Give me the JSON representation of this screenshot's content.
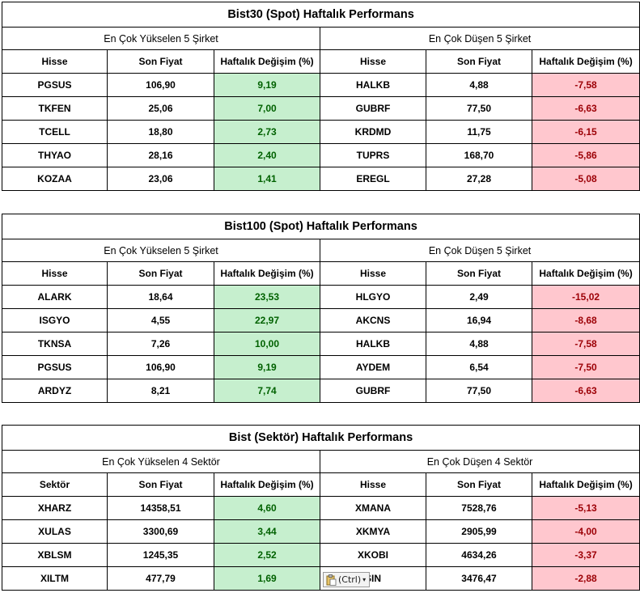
{
  "tables": [
    {
      "title": "Bist30 (Spot) Haftalık Performans",
      "left_group": "En Çok Yükselen 5 Şirket",
      "right_group": "En Çok Düşen 5 Şirket",
      "left_headers": [
        "Hisse",
        "Son Fiyat",
        "Haftalık Değişim (%)"
      ],
      "right_headers": [
        "Hisse",
        "Son Fiyat",
        "Haftalık Değişim (%)"
      ],
      "rows": [
        {
          "l_name": "PGSUS",
          "l_price": "106,90",
          "l_change": "9,19",
          "r_name": "HALKB",
          "r_price": "4,88",
          "r_change": "-7,58"
        },
        {
          "l_name": "TKFEN",
          "l_price": "25,06",
          "l_change": "7,00",
          "r_name": "GUBRF",
          "r_price": "77,50",
          "r_change": "-6,63"
        },
        {
          "l_name": "TCELL",
          "l_price": "18,80",
          "l_change": "2,73",
          "r_name": "KRDMD",
          "r_price": "11,75",
          "r_change": "-6,15"
        },
        {
          "l_name": "THYAO",
          "l_price": "28,16",
          "l_change": "2,40",
          "r_name": "TUPRS",
          "r_price": "168,70",
          "r_change": "-5,86"
        },
        {
          "l_name": "KOZAA",
          "l_price": "23,06",
          "l_change": "1,41",
          "r_name": "EREGL",
          "r_price": "27,28",
          "r_change": "-5,08"
        }
      ]
    },
    {
      "title": "Bist100 (Spot) Haftalık Performans",
      "left_group": "En Çok Yükselen 5 Şirket",
      "right_group": "En Çok Düşen 5 Şirket",
      "left_headers": [
        "Hisse",
        "Son Fiyat",
        "Haftalık Değişim (%)"
      ],
      "right_headers": [
        "Hisse",
        "Son Fiyat",
        "Haftalık Değişim (%)"
      ],
      "rows": [
        {
          "l_name": "ALARK",
          "l_price": "18,64",
          "l_change": "23,53",
          "r_name": "HLGYO",
          "r_price": "2,49",
          "r_change": "-15,02"
        },
        {
          "l_name": "ISGYO",
          "l_price": "4,55",
          "l_change": "22,97",
          "r_name": "AKCNS",
          "r_price": "16,94",
          "r_change": "-8,68"
        },
        {
          "l_name": "TKNSA",
          "l_price": "7,26",
          "l_change": "10,00",
          "r_name": "HALKB",
          "r_price": "4,88",
          "r_change": "-7,58"
        },
        {
          "l_name": "PGSUS",
          "l_price": "106,90",
          "l_change": "9,19",
          "r_name": "AYDEM",
          "r_price": "6,54",
          "r_change": "-7,50"
        },
        {
          "l_name": "ARDYZ",
          "l_price": "8,21",
          "l_change": "7,74",
          "r_name": "GUBRF",
          "r_price": "77,50",
          "r_change": "-6,63"
        }
      ]
    },
    {
      "title": "Bist (Sektör) Haftalık Performans",
      "left_group": "En Çok Yükselen 4 Sektör",
      "right_group": "En Çok Düşen 4 Sektör",
      "left_headers": [
        "Sektör",
        "Son Fiyat",
        "Haftalık Değişim (%)"
      ],
      "right_headers": [
        "Hisse",
        "Son Fiyat",
        "Haftalık Değişim (%)"
      ],
      "rows": [
        {
          "l_name": "XHARZ",
          "l_price": "14358,51",
          "l_change": "4,60",
          "r_name": "XMANA",
          "r_price": "7528,76",
          "r_change": "-5,13"
        },
        {
          "l_name": "XULAS",
          "l_price": "3300,69",
          "l_change": "3,44",
          "r_name": "XKMYA",
          "r_price": "2905,99",
          "r_change": "-4,00"
        },
        {
          "l_name": "XBLSM",
          "l_price": "1245,35",
          "l_change": "2,52",
          "r_name": "XKOBI",
          "r_price": "4634,26",
          "r_change": "-3,37"
        },
        {
          "l_name": "XILTM",
          "l_price": "477,79",
          "l_change": "1,69",
          "r_name": "SIN",
          "r_price": "3476,47",
          "r_change": "-2,88"
        }
      ]
    }
  ],
  "paste_options": {
    "label": "(Ctrl)",
    "icon": "clipboard-icon",
    "arrow_icon": "dropdown-arrow-icon"
  },
  "colors": {
    "positive_fill": "#c6efce",
    "positive_text": "#006100",
    "negative_fill": "#ffc7ce",
    "negative_text": "#9c0006"
  }
}
